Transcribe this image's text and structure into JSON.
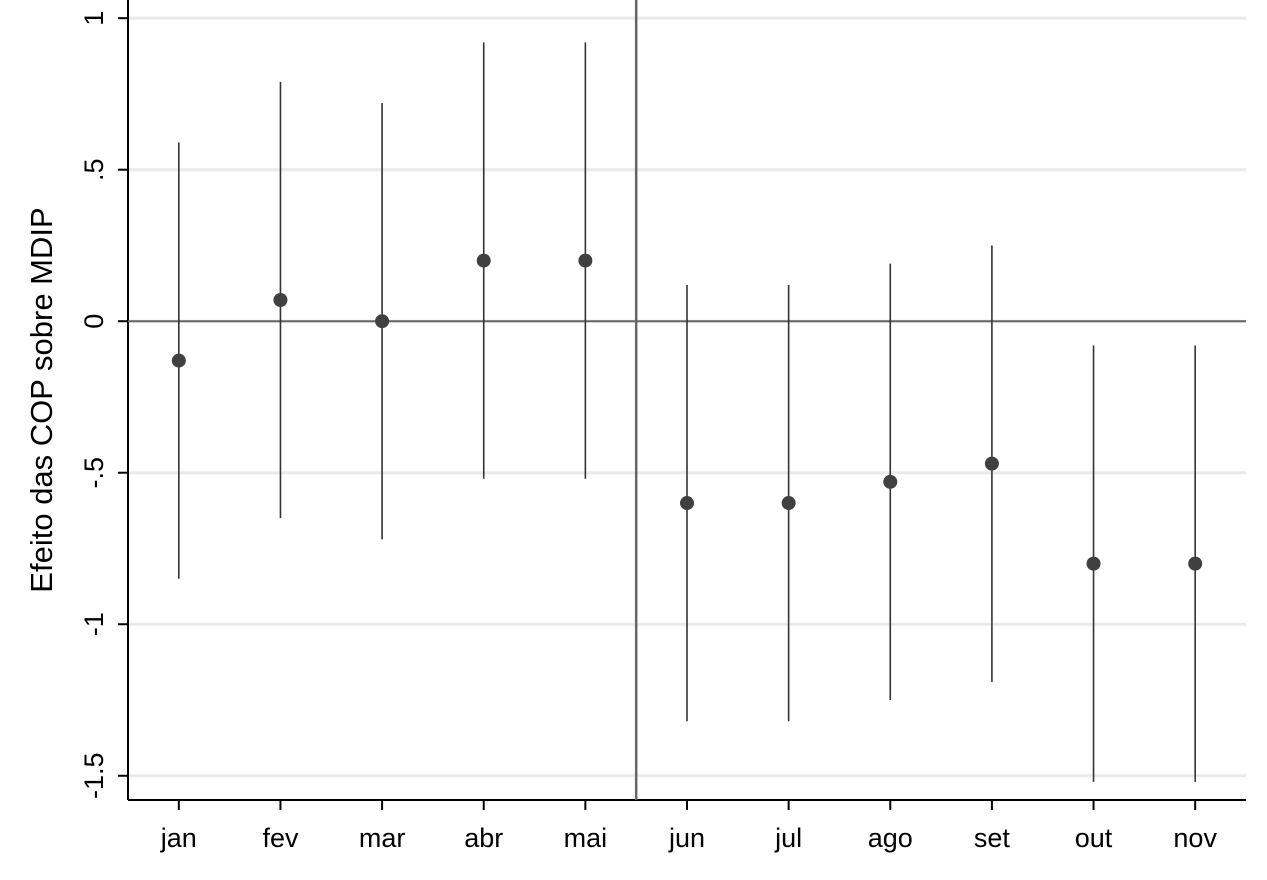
{
  "chart_data": {
    "type": "coefplot",
    "y_label": "Efeito das COP sobre MDIP",
    "categories": [
      "jan",
      "fev",
      "mar",
      "abr",
      "mai",
      "jun",
      "jul",
      "ago",
      "set",
      "out",
      "nov"
    ],
    "values": [
      -0.13,
      0.07,
      0,
      0.2,
      0.2,
      -0.6,
      -0.6,
      -0.53,
      -0.47,
      -0.8,
      -0.8
    ],
    "ci_lower": [
      -0.85,
      -0.65,
      -0.72,
      -0.52,
      -0.52,
      -1.32,
      -1.32,
      -1.25,
      -1.19,
      -1.52,
      -1.52
    ],
    "ci_upper": [
      0.59,
      0.79,
      0.72,
      0.92,
      0.92,
      0.12,
      0.12,
      0.19,
      0.25,
      -0.08,
      -0.08
    ],
    "color": "#404040",
    "ylim": [
      -1.58,
      1.06
    ],
    "yticks": [
      1,
      {
        "value": 0.5,
        "label": ".5"
      },
      0,
      {
        "value": -0.5,
        "label": "-.5"
      },
      -1,
      -1.5
    ],
    "grid": true,
    "yline": 0,
    "xline_after": "mai"
  }
}
